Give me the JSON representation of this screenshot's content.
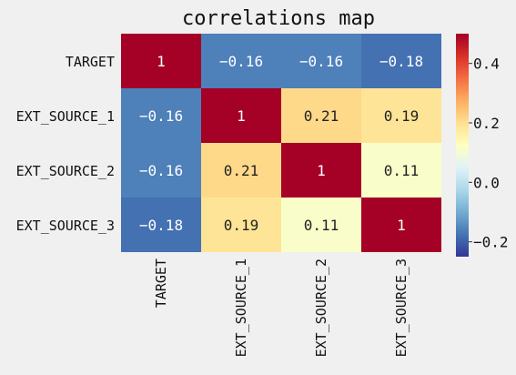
{
  "chart_data": {
    "type": "heatmap",
    "title": "correlations map",
    "row_labels": [
      "TARGET",
      "EXT_SOURCE_1",
      "EXT_SOURCE_2",
      "EXT_SOURCE_3"
    ],
    "col_labels": [
      "TARGET",
      "EXT_SOURCE_1",
      "EXT_SOURCE_2",
      "EXT_SOURCE_3"
    ],
    "values": [
      [
        1,
        -0.16,
        -0.16,
        -0.18
      ],
      [
        -0.16,
        1,
        0.21,
        0.19
      ],
      [
        -0.16,
        0.21,
        1,
        0.11
      ],
      [
        -0.18,
        0.19,
        0.11,
        1
      ]
    ],
    "annotations": [
      [
        "1",
        "-0.16",
        "-0.16",
        "-0.18"
      ],
      [
        "-0.16",
        "1",
        "0.21",
        "0.19"
      ],
      [
        "-0.16",
        "0.21",
        "1",
        "0.11"
      ],
      [
        "-0.18",
        "0.19",
        "0.11",
        "1"
      ]
    ],
    "colormap": "RdYlBu_r",
    "colorbar": {
      "range": [
        -0.25,
        0.5
      ],
      "ticks": [
        0.4,
        0.2,
        0.0,
        -0.2
      ],
      "tick_labels": [
        "0.4",
        "0.2",
        "0.0",
        "-0.2"
      ]
    },
    "xlabel": "",
    "ylabel": "",
    "grid": false
  }
}
